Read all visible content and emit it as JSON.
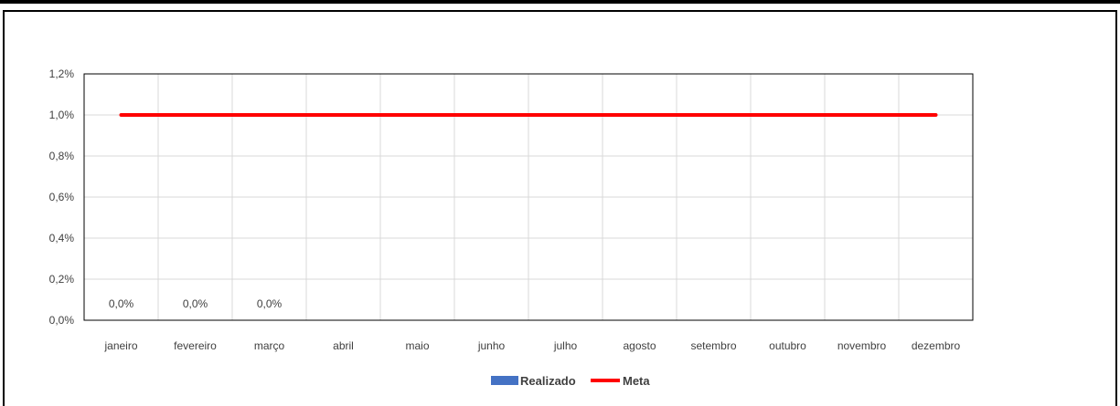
{
  "chart_data": {
    "type": "bar",
    "categories": [
      "janeiro",
      "fevereiro",
      "março",
      "abril",
      "maio",
      "junho",
      "julho",
      "agosto",
      "setembro",
      "outubro",
      "novembro",
      "dezembro"
    ],
    "series": [
      {
        "name": "Realizado",
        "kind": "bar",
        "color": "#4472C4",
        "values": [
          0.0,
          0.0,
          0.0,
          null,
          null,
          null,
          null,
          null,
          null,
          null,
          null,
          null
        ],
        "data_labels": [
          "0,0%",
          "0,0%",
          "0,0%",
          "",
          "",
          "",
          "",
          "",
          "",
          "",
          "",
          ""
        ]
      },
      {
        "name": "Meta",
        "kind": "line",
        "color": "#FF0000",
        "values": [
          1.0,
          1.0,
          1.0,
          1.0,
          1.0,
          1.0,
          1.0,
          1.0,
          1.0,
          1.0,
          1.0,
          1.0
        ]
      }
    ],
    "ylim": [
      0,
      1.2
    ],
    "yticks": [
      0.0,
      0.2,
      0.4,
      0.6,
      0.8,
      1.0,
      1.2
    ],
    "ytick_labels": [
      "0,0%",
      "0,2%",
      "0,4%",
      "0,6%",
      "0,8%",
      "1,0%",
      "1,2%"
    ],
    "grid": true,
    "legend": "bottom-center"
  }
}
